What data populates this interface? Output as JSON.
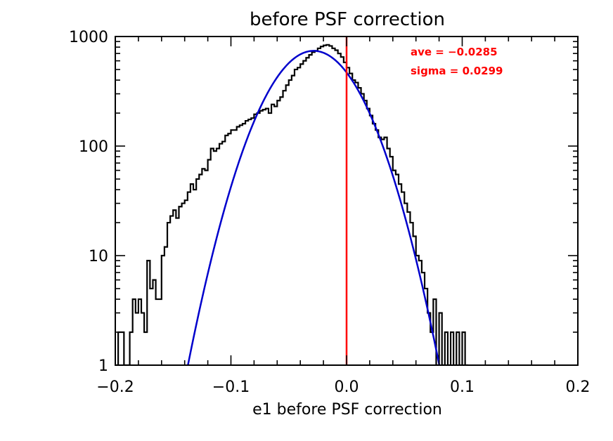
{
  "chart_data": {
    "type": "histogram",
    "title": "before PSF correction",
    "xlabel": "e1 before PSF correction",
    "ylabel": "",
    "xlim": [
      -0.2,
      0.2
    ],
    "ylim": [
      1,
      1000
    ],
    "yscale": "log",
    "xticks": [
      {
        "value": -0.2,
        "label": "−0.2"
      },
      {
        "value": -0.1,
        "label": "−0.1"
      },
      {
        "value": 0.0,
        "label": "0.0"
      },
      {
        "value": 0.1,
        "label": "0.1"
      },
      {
        "value": 0.2,
        "label": "0.2"
      }
    ],
    "yticks": [
      {
        "value": 1,
        "label": "1"
      },
      {
        "value": 10,
        "label": "10"
      },
      {
        "value": 100,
        "label": "100"
      },
      {
        "value": 1000,
        "label": "1000"
      }
    ],
    "grid": false,
    "annotations": [
      {
        "text": "ave = −0.0285",
        "color": "#ff0000"
      },
      {
        "text": "sigma =  0.0299",
        "color": "#ff0000"
      }
    ],
    "vline": {
      "x": 0.0,
      "color": "#ff0000"
    },
    "histogram": {
      "color": "#000000",
      "bin_width": 0.0025,
      "bins": [
        [
          -0.2,
          1
        ],
        [
          -0.1975,
          2
        ],
        [
          -0.195,
          2
        ],
        [
          -0.1925,
          1
        ],
        [
          -0.19,
          1
        ],
        [
          -0.1875,
          2
        ],
        [
          -0.185,
          4
        ],
        [
          -0.1825,
          3
        ],
        [
          -0.18,
          4
        ],
        [
          -0.1775,
          3
        ],
        [
          -0.175,
          2
        ],
        [
          -0.1725,
          9
        ],
        [
          -0.17,
          5
        ],
        [
          -0.1675,
          6
        ],
        [
          -0.165,
          4
        ],
        [
          -0.1625,
          4
        ],
        [
          -0.16,
          10
        ],
        [
          -0.1575,
          12
        ],
        [
          -0.155,
          20
        ],
        [
          -0.1525,
          23
        ],
        [
          -0.15,
          26
        ],
        [
          -0.1475,
          22
        ],
        [
          -0.145,
          28
        ],
        [
          -0.1425,
          30
        ],
        [
          -0.14,
          32
        ],
        [
          -0.1375,
          38
        ],
        [
          -0.135,
          45
        ],
        [
          -0.1325,
          40
        ],
        [
          -0.13,
          50
        ],
        [
          -0.1275,
          55
        ],
        [
          -0.125,
          62
        ],
        [
          -0.1225,
          60
        ],
        [
          -0.12,
          75
        ],
        [
          -0.1175,
          95
        ],
        [
          -0.115,
          90
        ],
        [
          -0.1125,
          95
        ],
        [
          -0.11,
          105
        ],
        [
          -0.1075,
          110
        ],
        [
          -0.105,
          125
        ],
        [
          -0.1025,
          130
        ],
        [
          -0.1,
          140
        ],
        [
          -0.0975,
          140
        ],
        [
          -0.095,
          150
        ],
        [
          -0.0925,
          155
        ],
        [
          -0.09,
          160
        ],
        [
          -0.0875,
          170
        ],
        [
          -0.085,
          175
        ],
        [
          -0.0825,
          180
        ],
        [
          -0.08,
          195
        ],
        [
          -0.0775,
          200
        ],
        [
          -0.075,
          210
        ],
        [
          -0.0725,
          215
        ],
        [
          -0.07,
          220
        ],
        [
          -0.0675,
          200
        ],
        [
          -0.065,
          240
        ],
        [
          -0.0625,
          230
        ],
        [
          -0.06,
          260
        ],
        [
          -0.0575,
          280
        ],
        [
          -0.055,
          320
        ],
        [
          -0.0525,
          360
        ],
        [
          -0.05,
          400
        ],
        [
          -0.0475,
          440
        ],
        [
          -0.045,
          500
        ],
        [
          -0.0425,
          520
        ],
        [
          -0.04,
          560
        ],
        [
          -0.0375,
          600
        ],
        [
          -0.035,
          640
        ],
        [
          -0.0325,
          680
        ],
        [
          -0.03,
          720
        ],
        [
          -0.0275,
          740
        ],
        [
          -0.025,
          780
        ],
        [
          -0.0225,
          810
        ],
        [
          -0.02,
          830
        ],
        [
          -0.0175,
          840
        ],
        [
          -0.015,
          820
        ],
        [
          -0.0125,
          780
        ],
        [
          -0.01,
          750
        ],
        [
          -0.0075,
          700
        ],
        [
          -0.005,
          650
        ],
        [
          -0.0025,
          580
        ],
        [
          0.0,
          520
        ],
        [
          0.0025,
          460
        ],
        [
          0.005,
          400
        ],
        [
          0.0075,
          380
        ],
        [
          0.01,
          340
        ],
        [
          0.0125,
          300
        ],
        [
          0.015,
          260
        ],
        [
          0.0175,
          220
        ],
        [
          0.02,
          190
        ],
        [
          0.0225,
          160
        ],
        [
          0.025,
          140
        ],
        [
          0.0275,
          120
        ],
        [
          0.03,
          115
        ],
        [
          0.0325,
          120
        ],
        [
          0.035,
          95
        ],
        [
          0.0375,
          80
        ],
        [
          0.04,
          60
        ],
        [
          0.0425,
          55
        ],
        [
          0.045,
          45
        ],
        [
          0.0475,
          38
        ],
        [
          0.05,
          30
        ],
        [
          0.0525,
          25
        ],
        [
          0.055,
          20
        ],
        [
          0.0575,
          15
        ],
        [
          0.06,
          10
        ],
        [
          0.0625,
          9
        ],
        [
          0.065,
          7
        ],
        [
          0.0675,
          5
        ],
        [
          0.07,
          3
        ],
        [
          0.0725,
          2
        ],
        [
          0.075,
          4
        ],
        [
          0.0775,
          1
        ],
        [
          0.08,
          3
        ],
        [
          0.0825,
          1
        ],
        [
          0.085,
          2
        ],
        [
          0.0875,
          1
        ],
        [
          0.09,
          2
        ],
        [
          0.0925,
          1
        ],
        [
          0.095,
          2
        ],
        [
          0.0975,
          1
        ],
        [
          0.1,
          2
        ],
        [
          0.1025,
          1
        ]
      ]
    },
    "gaussian_fit": {
      "color": "#0000cc",
      "mean": -0.0285,
      "sigma": 0.0299,
      "amplitude": 740
    }
  }
}
